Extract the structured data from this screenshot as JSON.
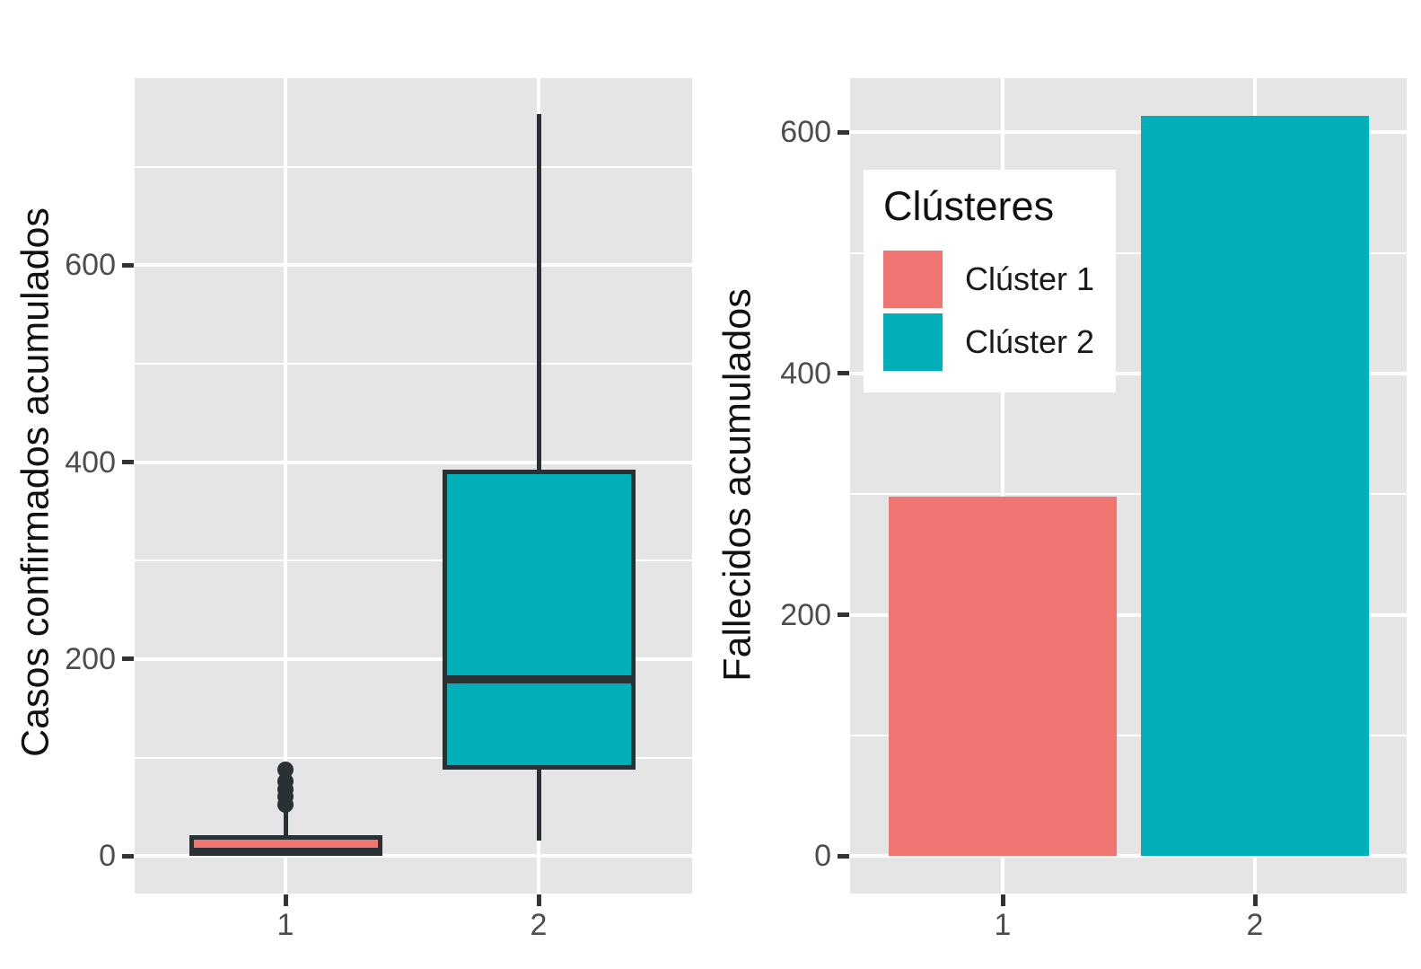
{
  "figure": {
    "background": "#ffffff",
    "panel_background": "#e5e5e5",
    "gridline_color": "#ffffff",
    "tick_label_color": "#4d4d4d",
    "tick_mark_color": "#333333",
    "axis_title_color": "#111111",
    "geom_outline_color": "#2a3135",
    "cluster1_color": "#f07470",
    "cluster2_color": "#00afb8"
  },
  "chart_data": [
    {
      "type": "boxplot",
      "title": "",
      "xlabel": "",
      "ylabel": "Casos confirmados acumulados",
      "categories": [
        "1",
        "2"
      ],
      "y_ticks": [
        0,
        200,
        400,
        600
      ],
      "y_minor_ticks": [
        100,
        300,
        500,
        700
      ],
      "ylim": [
        -38,
        790
      ],
      "grid": "white on grey panel",
      "series": [
        {
          "name": "Clúster 1",
          "whisker_low": 0,
          "q1": 1,
          "median": 4,
          "q3": 21,
          "whisker_high": 46,
          "outliers": [
            52,
            60,
            68,
            76,
            88
          ]
        },
        {
          "name": "Clúster 2",
          "whisker_low": 16,
          "q1": 88,
          "median": 179,
          "q3": 392,
          "whisker_high": 753,
          "outliers": []
        }
      ]
    },
    {
      "type": "bar",
      "title": "",
      "xlabel": "",
      "ylabel": "Fallecidos acumulados",
      "categories": [
        "1",
        "2"
      ],
      "values": [
        298,
        614
      ],
      "y_ticks": [
        0,
        200,
        400,
        600
      ],
      "y_minor_ticks": [
        100,
        300,
        500
      ],
      "ylim": [
        -31,
        645
      ],
      "grid": "white on grey panel",
      "legend": {
        "title": "Clústeres",
        "position": "inside top-left",
        "entries": [
          {
            "label": "Clúster 1",
            "color": "#f07470"
          },
          {
            "label": "Clúster 2",
            "color": "#00afb8"
          }
        ]
      }
    }
  ]
}
